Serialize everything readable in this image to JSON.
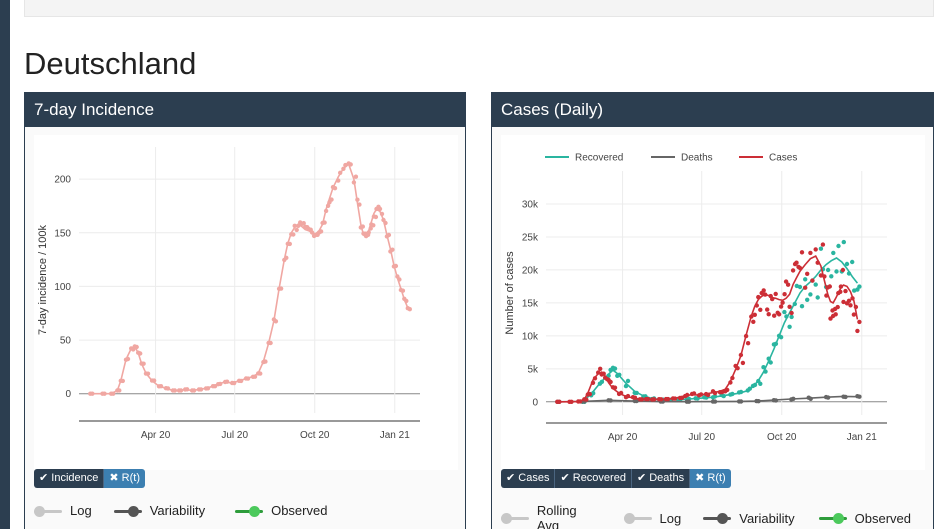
{
  "page": {
    "region_title": "Deutschland"
  },
  "panels": [
    {
      "title": "7-day Incidence",
      "buttons": [
        {
          "label": "Incidence",
          "active": true,
          "icon": "check-icon"
        },
        {
          "label": "R(t)",
          "active": false,
          "icon": "times-icon"
        }
      ],
      "toggles": [
        {
          "label": "Log",
          "state": "off"
        },
        {
          "label": "Variability",
          "state": "on"
        },
        {
          "label": "Observed",
          "state": "on"
        }
      ]
    },
    {
      "title": "Cases (Daily)",
      "buttons": [
        {
          "label": "Cases",
          "active": true,
          "icon": "check-icon"
        },
        {
          "label": "Recovered",
          "active": true,
          "icon": "check-icon"
        },
        {
          "label": "Deaths",
          "active": true,
          "icon": "check-icon"
        },
        {
          "label": "R(t)",
          "active": false,
          "icon": "times-icon"
        }
      ],
      "toggles": [
        {
          "label": "Rolling Avg",
          "state": "off"
        },
        {
          "label": "Log",
          "state": "off"
        },
        {
          "label": "Variability",
          "state": "on"
        },
        {
          "label": "Observed",
          "state": "on"
        }
      ]
    }
  ],
  "chart_data": [
    {
      "type": "line",
      "ylabel": "7-day incidence / 100k",
      "xlabel": "",
      "x_ticks": [
        "Apr 20",
        "Jul 20",
        "Oct 20",
        "Jan 21"
      ],
      "y_ticks": [
        0,
        50,
        100,
        150,
        200
      ],
      "ylim": [
        -18,
        230
      ],
      "x_unit": "days since 2020-01-01",
      "xlim": [
        18,
        410
      ],
      "grid": true,
      "color": "#f0a7a2",
      "series": [
        {
          "x": [
            31,
            45,
            55,
            62,
            66,
            72,
            78,
            82,
            86,
            90,
            95,
            102,
            110,
            118,
            126,
            133,
            140,
            148,
            156,
            164,
            172,
            178,
            186,
            194,
            202,
            210,
            218,
            224,
            230,
            236,
            242,
            248,
            254,
            258,
            262,
            266,
            270,
            274,
            278,
            282,
            286,
            290,
            294,
            298,
            302,
            306,
            310,
            316,
            322,
            328,
            334,
            338,
            342,
            345,
            348,
            351,
            354,
            357,
            360,
            364,
            368,
            372,
            376,
            380,
            384,
            388,
            392,
            396
          ],
          "y": [
            0,
            0,
            0,
            3,
            12,
            32,
            42,
            44,
            38,
            28,
            19,
            12,
            7,
            5,
            3,
            3,
            4,
            3,
            4,
            5,
            7,
            9,
            11,
            10,
            12,
            14,
            16,
            19,
            30,
            47,
            68,
            98,
            125,
            140,
            150,
            155,
            158,
            156,
            153,
            152,
            150,
            149,
            152,
            158,
            172,
            182,
            192,
            202,
            210,
            214,
            200,
            178,
            158,
            148,
            146,
            152,
            160,
            168,
            172,
            170,
            162,
            148,
            135,
            120,
            108,
            98,
            88,
            80
          ]
        }
      ]
    },
    {
      "type": "line",
      "ylabel": "Number of cases",
      "xlabel": "",
      "x_ticks": [
        "Apr 20",
        "Jul 20",
        "Oct 20",
        "Jan 21"
      ],
      "y_ticks": [
        0,
        5000,
        10000,
        15000,
        20000,
        25000,
        30000
      ],
      "y_tick_labels": [
        "0",
        "5k",
        "10k",
        "15k",
        "20k",
        "25k",
        "30k"
      ],
      "ylim": [
        -2000,
        35000
      ],
      "x_unit": "days since 2020-01-01",
      "xlim": [
        18,
        410
      ],
      "grid": true,
      "legend": {
        "position": "top",
        "entries": [
          "Recovered",
          "Deaths",
          "Cases"
        ]
      },
      "series": [
        {
          "name": "Recovered",
          "color": "#2ab5a0",
          "x": [
            60,
            70,
            80,
            90,
            95,
            100,
            110,
            120,
            130,
            140,
            150,
            160,
            170,
            180,
            190,
            200,
            210,
            220,
            230,
            240,
            250,
            256,
            262,
            268,
            274,
            280,
            286,
            292,
            298,
            304,
            310,
            316,
            322,
            328,
            334,
            340,
            346,
            352,
            358,
            364,
            370,
            376
          ],
          "y": [
            0,
            1200,
            2800,
            4200,
            4800,
            4300,
            2800,
            1600,
            900,
            500,
            350,
            300,
            320,
            400,
            500,
            600,
            700,
            900,
            1100,
            1300,
            1700,
            2300,
            3200,
            4500,
            6200,
            8000,
            10000,
            12000,
            13500,
            15000,
            16500,
            17500,
            18200,
            19000,
            20000,
            20800,
            21400,
            21800,
            21200,
            20200,
            19000,
            18000
          ]
        },
        {
          "name": "Deaths",
          "color": "#666666",
          "x": [
            31,
            60,
            90,
            120,
            150,
            180,
            210,
            240,
            260,
            280,
            300,
            320,
            340,
            360,
            376
          ],
          "y": [
            0,
            60,
            230,
            120,
            30,
            20,
            30,
            60,
            110,
            260,
            420,
            550,
            700,
            820,
            780
          ]
        },
        {
          "name": "Cases",
          "color": "#cc2e36",
          "x": [
            31,
            45,
            55,
            62,
            66,
            72,
            78,
            82,
            86,
            90,
            95,
            102,
            110,
            118,
            126,
            133,
            140,
            148,
            156,
            164,
            172,
            178,
            186,
            194,
            202,
            210,
            218,
            224,
            230,
            236,
            242,
            248,
            254,
            258,
            262,
            266,
            270,
            274,
            278,
            282,
            286,
            290,
            294,
            298,
            302,
            306,
            310,
            316,
            322,
            328,
            334,
            338,
            342,
            345,
            348,
            351,
            354,
            357,
            360,
            364,
            368,
            372,
            376
          ],
          "y": [
            0,
            0,
            50,
            350,
            1300,
            3300,
            4300,
            4500,
            3900,
            2900,
            2000,
            1300,
            800,
            600,
            400,
            400,
            400,
            350,
            400,
            500,
            700,
            900,
            1100,
            1000,
            1200,
            1400,
            1600,
            1900,
            3100,
            4900,
            7000,
            10100,
            13000,
            14500,
            15500,
            16000,
            16300,
            16100,
            15800,
            15700,
            15500,
            15400,
            15700,
            16300,
            17800,
            18800,
            19800,
            20800,
            21700,
            22100,
            20600,
            18400,
            16300,
            15200,
            15000,
            15700,
            16500,
            17300,
            17700,
            17500,
            16700,
            15300,
            12500
          ]
        }
      ]
    }
  ]
}
